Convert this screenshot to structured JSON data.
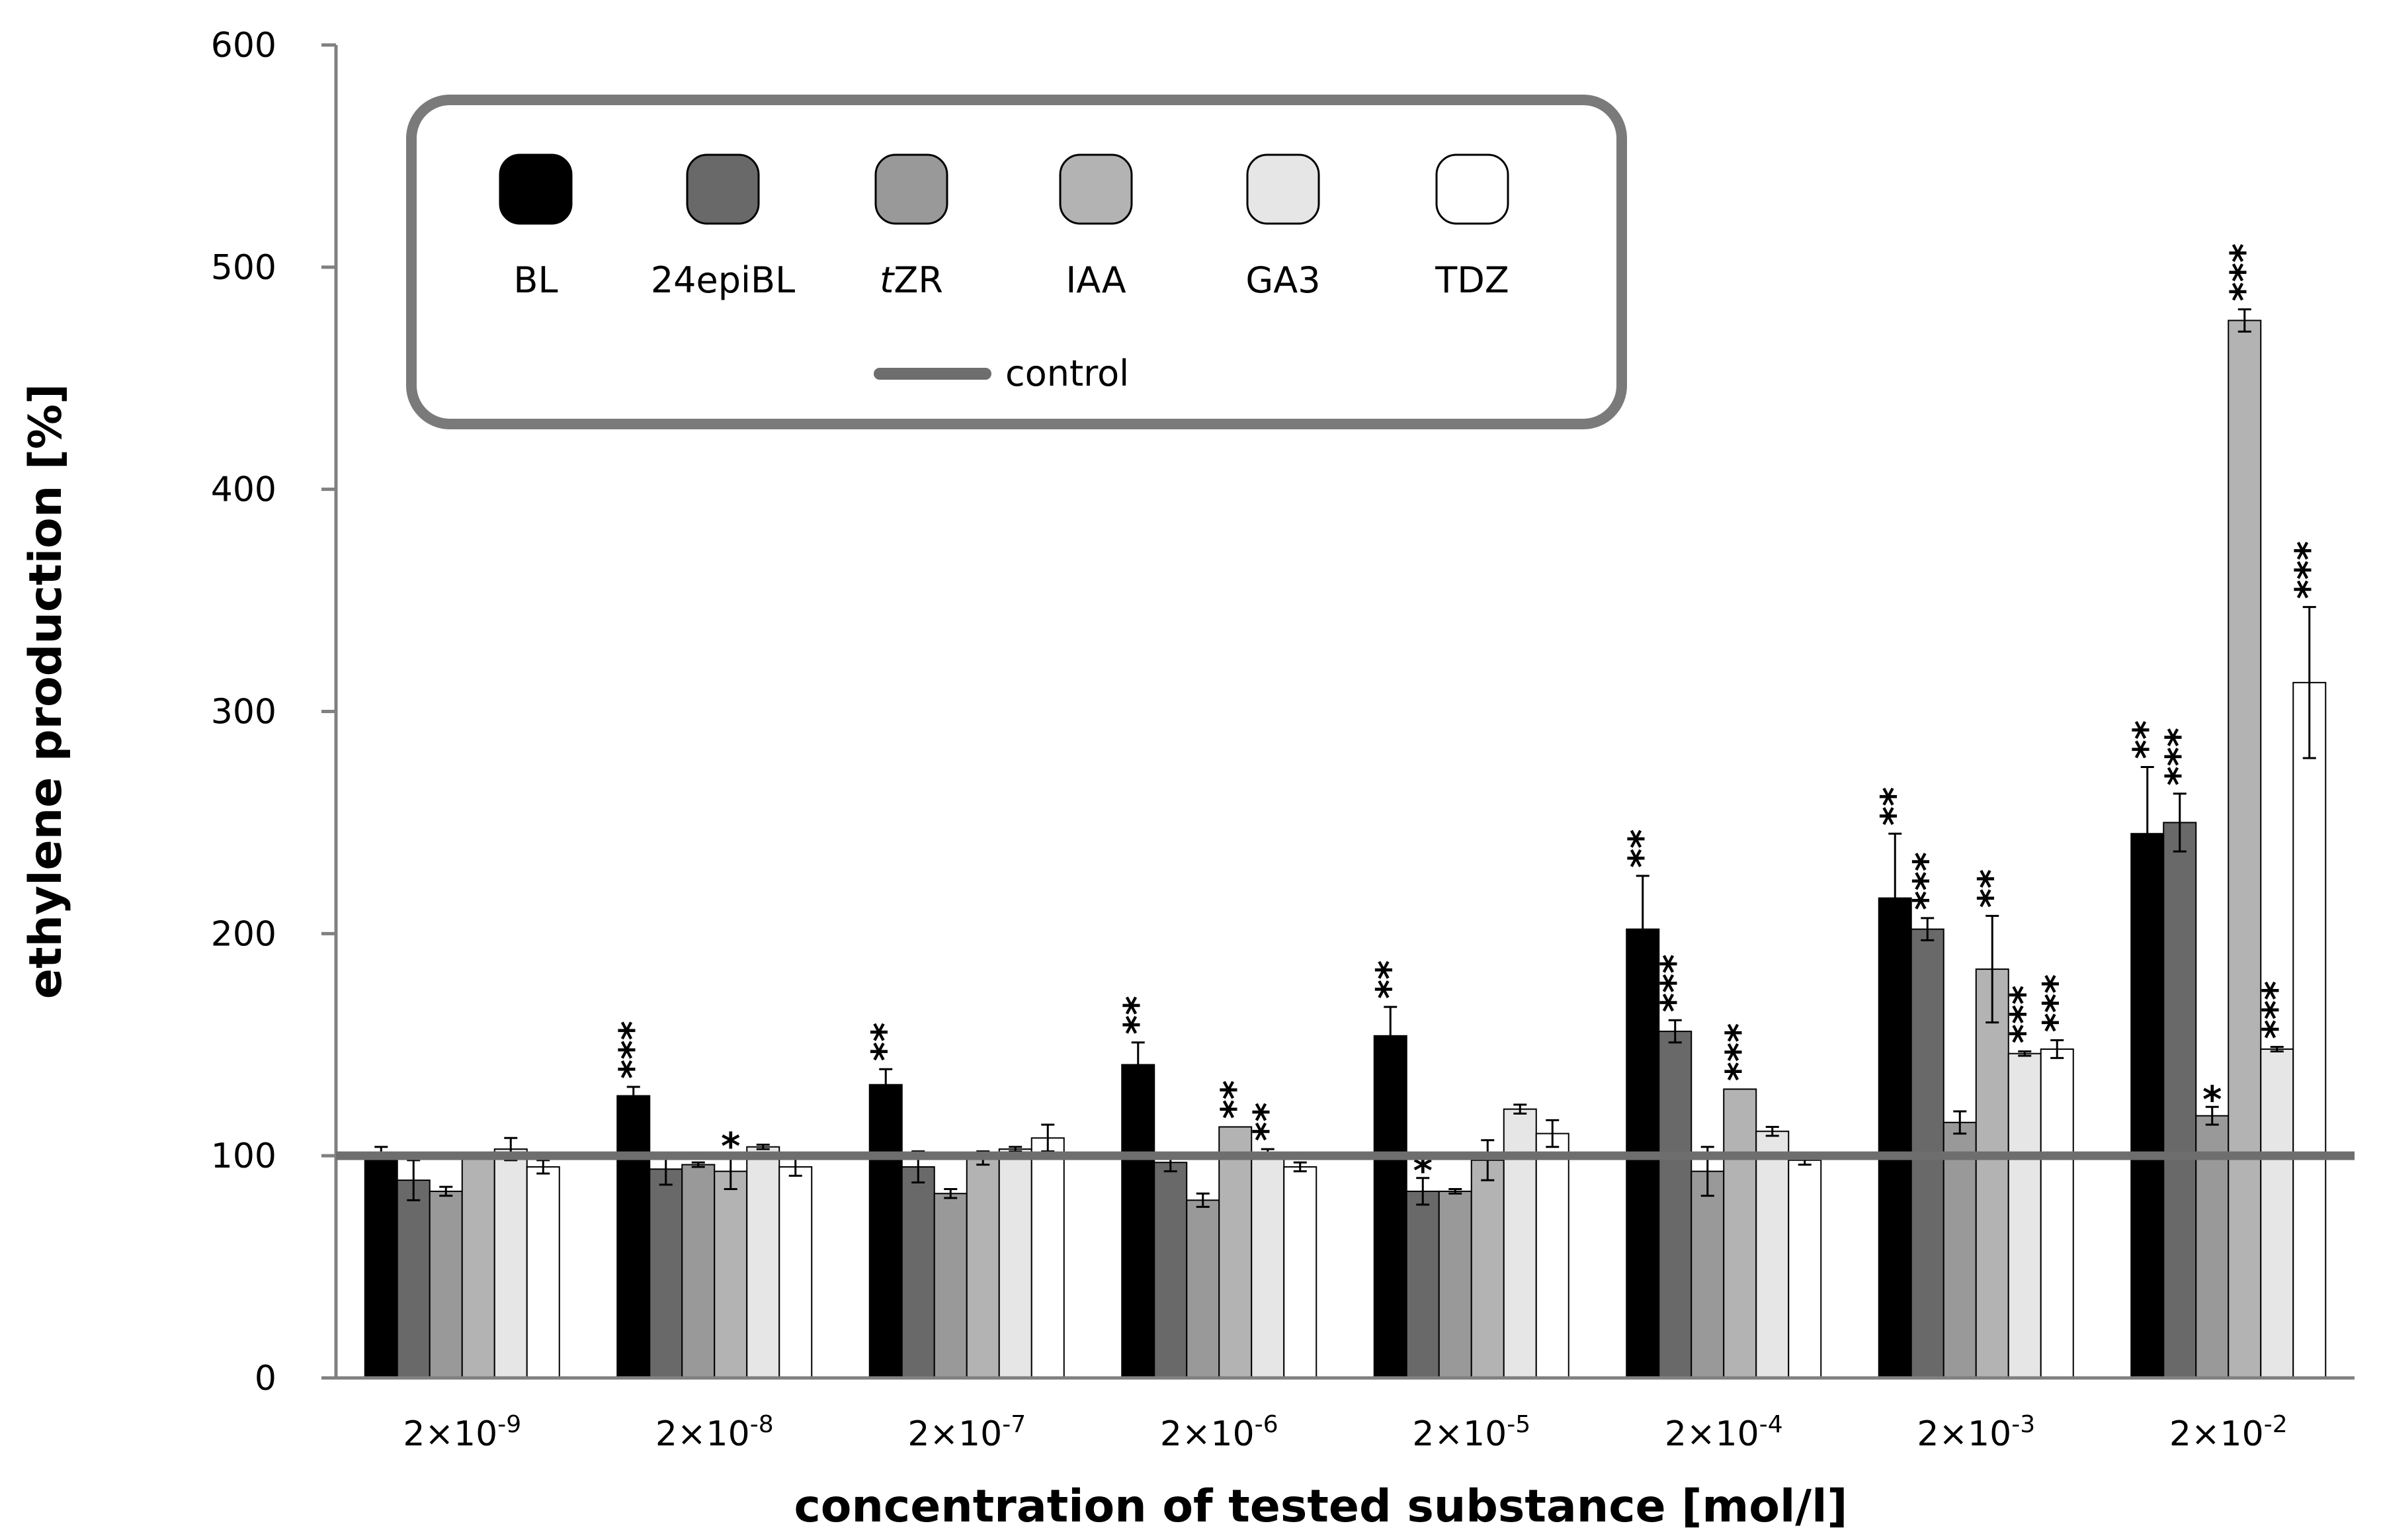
{
  "chart_data": {
    "type": "bar",
    "title": "",
    "xlabel": "concentration of tested substance [mol/l]",
    "ylabel": "ethylene production [%]",
    "ylim": [
      0,
      600
    ],
    "yticks": [
      0,
      100,
      200,
      300,
      400,
      500,
      600
    ],
    "grid": false,
    "legend_position": "top-left",
    "categories": [
      {
        "base": "2×10",
        "exp": "-9"
      },
      {
        "base": "2×10",
        "exp": "-8"
      },
      {
        "base": "2×10",
        "exp": "-7"
      },
      {
        "base": "2×10",
        "exp": "-6"
      },
      {
        "base": "2×10",
        "exp": "-5"
      },
      {
        "base": "2×10",
        "exp": "-4"
      },
      {
        "base": "2×10",
        "exp": "-3"
      },
      {
        "base": "2×10",
        "exp": "-2"
      }
    ],
    "control": {
      "label": "control",
      "value": 100,
      "color": "#6e6e6e"
    },
    "series": [
      {
        "name": "BL",
        "name_italic_prefix": "",
        "color": "#000000",
        "values": [
          100,
          127,
          132,
          141,
          154,
          202,
          216,
          245
        ],
        "errors": [
          4,
          4,
          7,
          10,
          13,
          24,
          29,
          30
        ],
        "significance": [
          "",
          "***",
          "**",
          "**",
          "**",
          "**",
          "**",
          "**"
        ]
      },
      {
        "name": "24epiBL",
        "name_italic_prefix": "",
        "color": "#696969",
        "values": [
          89,
          94,
          95,
          97,
          84,
          156,
          202,
          250
        ],
        "errors": [
          9,
          7,
          7,
          4,
          6,
          5,
          5,
          13
        ],
        "significance": [
          "",
          "",
          "",
          "",
          "*",
          "***",
          "***",
          "***"
        ]
      },
      {
        "name": "ZR",
        "name_italic_prefix": "t",
        "color": "#999999",
        "values": [
          84,
          96,
          83,
          80,
          84,
          93,
          115,
          118
        ],
        "errors": [
          2,
          1,
          2,
          3,
          1,
          11,
          5,
          4
        ],
        "significance": [
          "",
          "",
          "",
          "",
          "",
          "",
          "",
          "*"
        ]
      },
      {
        "name": "IAA",
        "name_italic_prefix": "",
        "color": "#b3b3b3",
        "values": [
          101,
          93,
          99,
          113,
          98,
          130,
          184,
          476
        ],
        "errors": [
          0,
          8,
          3,
          0,
          9,
          0,
          24,
          5
        ],
        "significance": [
          "",
          "*",
          "",
          "**",
          "",
          "***",
          "**",
          "***"
        ]
      },
      {
        "name": "GA3",
        "name_italic_prefix": "",
        "color": "#e6e6e6",
        "values": [
          103,
          104,
          103,
          101,
          121,
          111,
          146,
          148
        ],
        "errors": [
          5,
          1,
          1,
          2,
          2,
          2,
          1,
          1
        ],
        "significance": [
          "",
          "",
          "",
          "**",
          "",
          "",
          "***",
          "***"
        ]
      },
      {
        "name": "TDZ",
        "name_italic_prefix": "",
        "color": "#ffffff",
        "values": [
          95,
          95,
          108,
          95,
          110,
          98,
          148,
          313
        ],
        "errors": [
          3,
          4,
          6,
          2,
          6,
          2,
          4,
          34
        ],
        "significance": [
          "",
          "",
          "",
          "",
          "",
          "",
          "***",
          "***"
        ]
      }
    ]
  }
}
